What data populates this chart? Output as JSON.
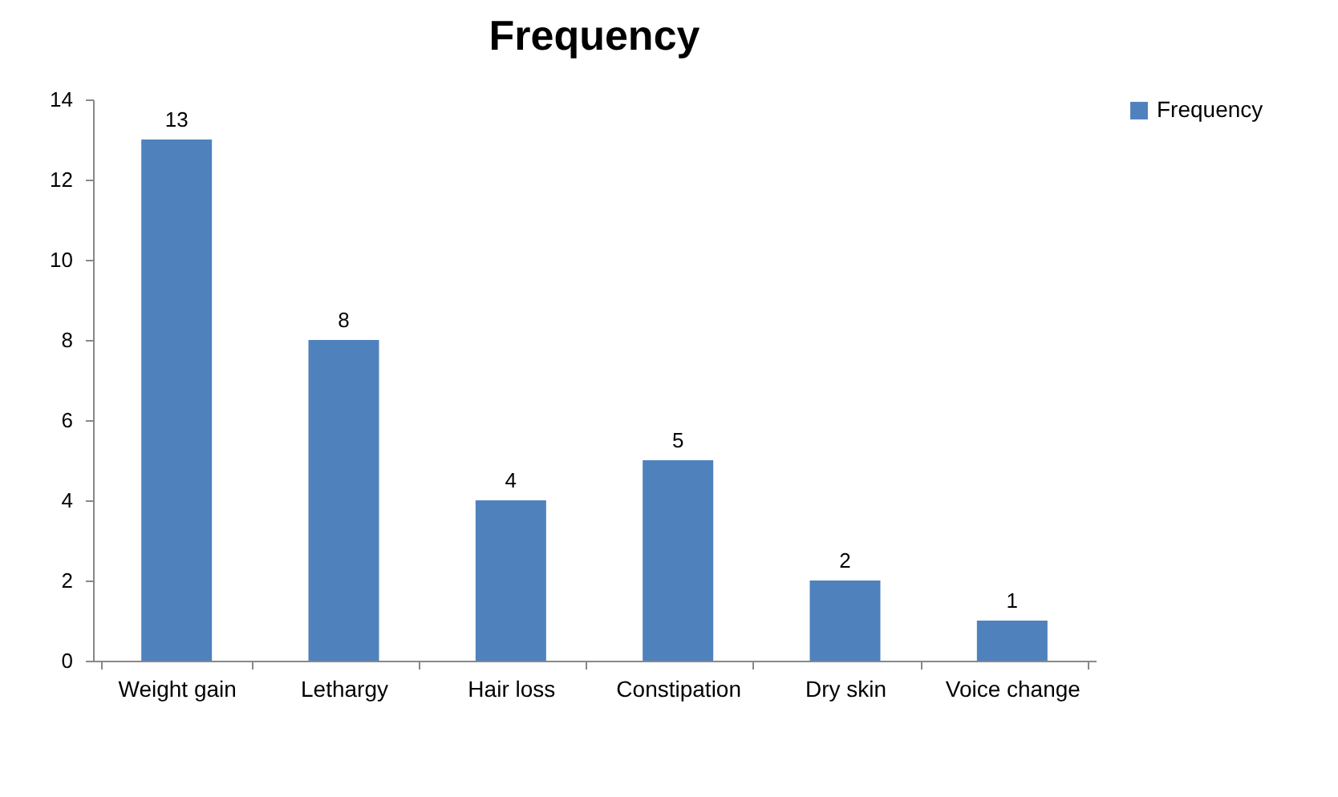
{
  "chart_data": {
    "type": "bar",
    "title": "Frequency",
    "categories": [
      "Weight gain",
      "Lethargy",
      "Hair loss",
      "Constipation",
      "Dry skin",
      "Voice change"
    ],
    "series": [
      {
        "name": "Frequency",
        "color": "#4f81bd",
        "values": [
          13,
          8,
          4,
          5,
          2,
          1
        ]
      }
    ],
    "ylim": [
      0,
      14
    ],
    "yticks": [
      0,
      2,
      4,
      6,
      8,
      10,
      12,
      14
    ],
    "grid": false,
    "legend": "right",
    "data_labels": true
  }
}
